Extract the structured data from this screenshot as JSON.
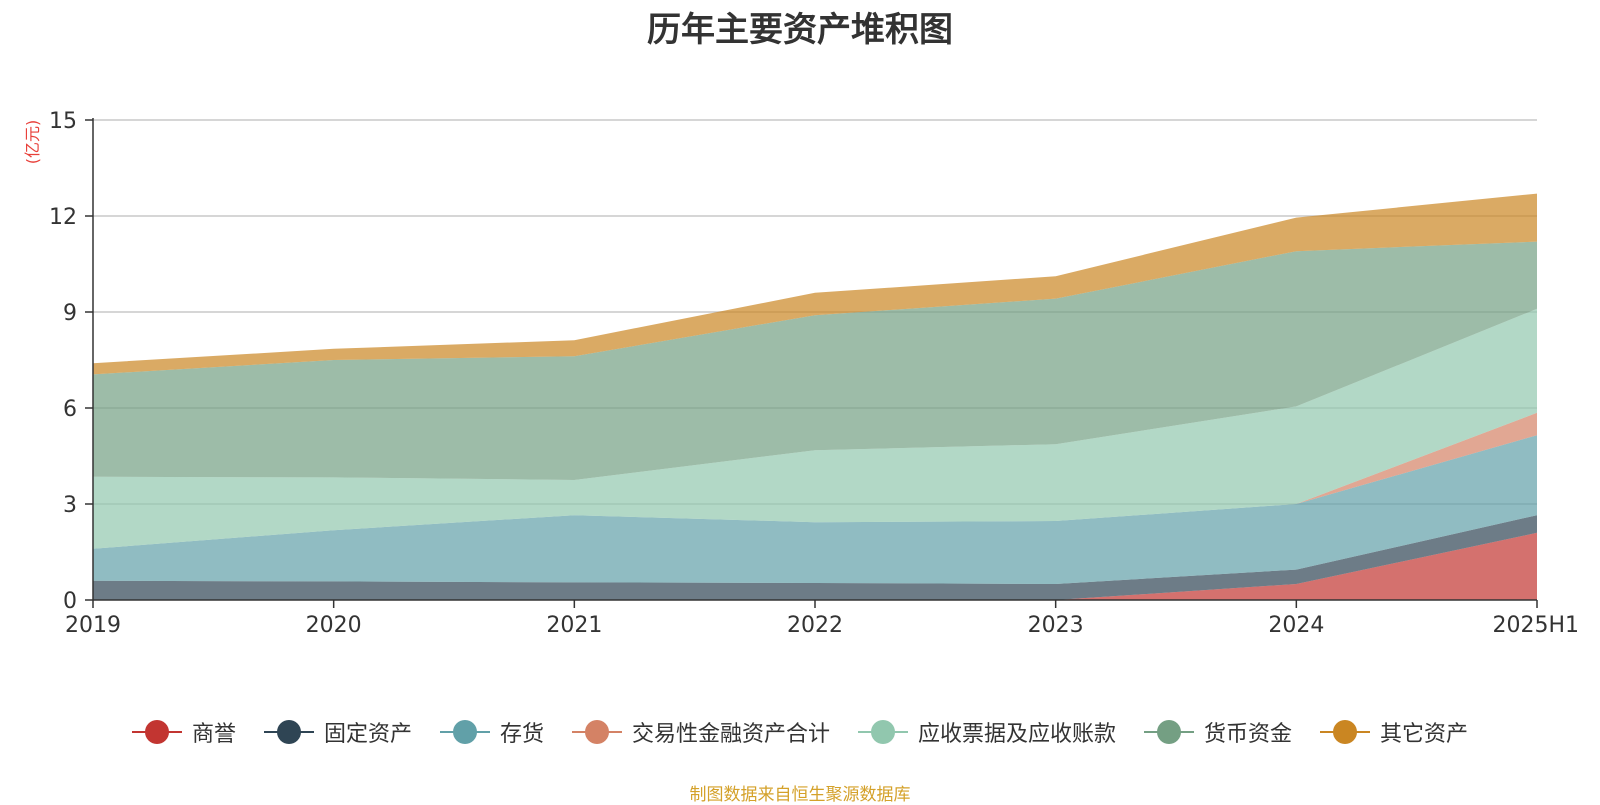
{
  "chart_data": {
    "type": "area",
    "stacked": true,
    "title": "历年主要资产堆积图",
    "ylabel": "(亿元)",
    "xlabel": "",
    "categories": [
      "2019",
      "2020",
      "2021",
      "2022",
      "2023",
      "2024",
      "2025H1"
    ],
    "ylim": [
      0,
      15
    ],
    "yticks": [
      0,
      3,
      6,
      9,
      12,
      15
    ],
    "grid": true,
    "legend_position": "bottom",
    "series": [
      {
        "name": "商誉",
        "color": "#c23531",
        "values": [
          0,
          0,
          0,
          0,
          0,
          0.5,
          2.1
        ]
      },
      {
        "name": "固定资产",
        "color": "#2f4554",
        "values": [
          0.6,
          0.58,
          0.55,
          0.53,
          0.5,
          0.45,
          0.55
        ]
      },
      {
        "name": "存货",
        "color": "#61a0a8",
        "values": [
          1.0,
          1.6,
          2.1,
          1.9,
          1.97,
          2.05,
          2.5
        ]
      },
      {
        "name": "交易性金融资产合计",
        "color": "#d48265",
        "values": [
          0,
          0,
          0,
          0,
          0,
          0,
          0.7
        ]
      },
      {
        "name": "应收票据及应收账款",
        "color": "#91c7ae",
        "values": [
          2.25,
          1.65,
          1.1,
          2.25,
          2.4,
          3.05,
          3.25
        ]
      },
      {
        "name": "货币资金",
        "color": "#749f83",
        "values": [
          3.2,
          3.67,
          3.87,
          4.22,
          4.55,
          4.85,
          2.1
        ]
      },
      {
        "name": "其它资产",
        "color": "#ca8622",
        "values": [
          0.35,
          0.35,
          0.5,
          0.7,
          0.7,
          1.05,
          1.5
        ]
      }
    ]
  },
  "footer": {
    "source": "制图数据来自恒生聚源数据库"
  }
}
